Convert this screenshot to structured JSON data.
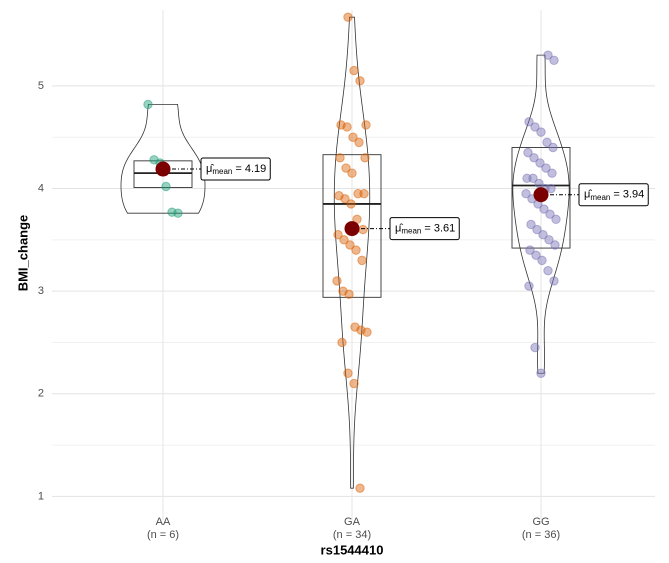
{
  "chart_data": {
    "type": "violin",
    "x_label": "rs1544410",
    "y_label": "BMI_change",
    "categories": [
      "AA",
      "GA",
      "GG"
    ],
    "category_notes": [
      "(n = 6)",
      "(n = 34)",
      "(n = 36)"
    ],
    "colors": [
      "#1b9e77",
      "#d95f02",
      "#7570b3"
    ],
    "points": [
      [
        4.82,
        4.28,
        4.25,
        4.02,
        3.77,
        3.76
      ],
      [
        5.67,
        5.15,
        5.05,
        4.62,
        4.62,
        4.6,
        4.5,
        4.45,
        4.3,
        4.3,
        4.2,
        4.15,
        3.95,
        3.95,
        3.93,
        3.9,
        3.85,
        3.7,
        3.6,
        3.55,
        3.5,
        3.45,
        3.4,
        3.3,
        3.1,
        3.0,
        2.97,
        2.65,
        2.62,
        2.6,
        2.5,
        2.2,
        2.1,
        1.08
      ],
      [
        5.3,
        5.25,
        4.65,
        4.6,
        4.55,
        4.45,
        4.4,
        4.35,
        4.3,
        4.25,
        4.2,
        4.15,
        4.1,
        4.1,
        4.05,
        4.0,
        4.0,
        3.95,
        3.9,
        3.85,
        3.8,
        3.75,
        3.7,
        3.65,
        3.6,
        3.55,
        3.5,
        3.45,
        3.4,
        3.35,
        3.3,
        3.2,
        3.1,
        3.05,
        2.45,
        2.2
      ]
    ],
    "boxes": [
      {
        "q1": 4.01,
        "median": 4.15,
        "q3": 4.27
      },
      {
        "q1": 2.94,
        "median": 3.85,
        "q3": 4.33
      },
      {
        "q1": 3.42,
        "median": 4.03,
        "q3": 4.4
      }
    ],
    "means": [
      4.19,
      3.61,
      3.94
    ],
    "mean_labels": [
      "= 4.19",
      "= 3.61",
      "= 3.94"
    ],
    "mean_symbol": "μ̂",
    "mean_subscript": "mean",
    "mean_color": "#7b0000",
    "ylim": [
      0.77,
      5.74
    ],
    "yticks": [
      1,
      2,
      3,
      4,
      5
    ],
    "grid": true
  }
}
